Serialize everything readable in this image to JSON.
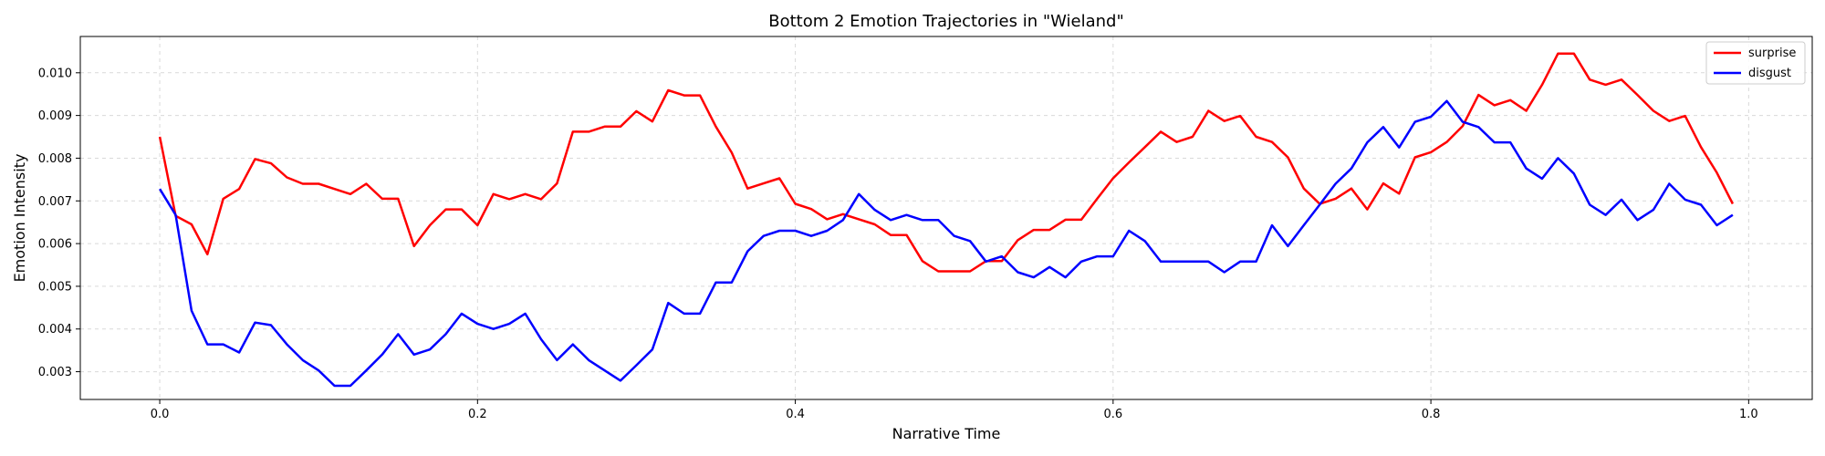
{
  "chart_data": {
    "type": "line",
    "title": "Bottom 2 Emotion Trajectories in \"Wieland\"",
    "xlabel": "Narrative Time",
    "ylabel": "Emotion Intensity",
    "xlim": [
      -0.05,
      1.04
    ],
    "ylim": [
      0.00235,
      0.01085
    ],
    "xticks": [
      0.0,
      0.2,
      0.4,
      0.6,
      0.8,
      1.0
    ],
    "xtick_labels": [
      "0.0",
      "0.2",
      "0.4",
      "0.6",
      "0.8",
      "1.0"
    ],
    "yticks": [
      0.003,
      0.004,
      0.005,
      0.006,
      0.007,
      0.008,
      0.009,
      0.01
    ],
    "ytick_labels": [
      "0.003",
      "0.004",
      "0.005",
      "0.006",
      "0.007",
      "0.008",
      "0.009",
      "0.010"
    ],
    "grid": true,
    "legend_position": "top-right",
    "x": [
      0.0,
      0.01,
      0.02,
      0.03,
      0.04,
      0.05,
      0.06,
      0.07,
      0.08,
      0.09,
      0.1,
      0.11,
      0.12,
      0.13,
      0.14,
      0.15,
      0.16,
      0.17,
      0.18,
      0.19,
      0.2,
      0.21,
      0.22,
      0.23,
      0.24,
      0.25,
      0.26,
      0.27,
      0.28,
      0.29,
      0.3,
      0.31,
      0.32,
      0.33,
      0.34,
      0.35,
      0.36,
      0.37,
      0.38,
      0.39,
      0.4,
      0.41,
      0.42,
      0.43,
      0.44,
      0.45,
      0.46,
      0.47,
      0.48,
      0.49,
      0.5,
      0.51,
      0.52,
      0.53,
      0.54,
      0.55,
      0.56,
      0.57,
      0.58,
      0.59,
      0.6,
      0.61,
      0.62,
      0.63,
      0.64,
      0.65,
      0.66,
      0.67,
      0.68,
      0.69,
      0.7,
      0.71,
      0.72,
      0.73,
      0.74,
      0.75,
      0.76,
      0.77,
      0.78,
      0.79,
      0.8,
      0.81,
      0.82,
      0.83,
      0.84,
      0.85,
      0.86,
      0.87,
      0.88,
      0.89,
      0.9,
      0.91,
      0.92,
      0.93,
      0.94,
      0.95,
      0.96,
      0.97,
      0.98,
      0.99
    ],
    "series": [
      {
        "name": "surprise",
        "color": "#ff0000",
        "values": [
          0.0085,
          0.00665,
          0.00645,
          0.00575,
          0.00705,
          0.00728,
          0.00798,
          0.00788,
          0.00755,
          0.0074,
          0.0074,
          0.00728,
          0.00716,
          0.0074,
          0.00705,
          0.00705,
          0.00594,
          0.00643,
          0.0068,
          0.0068,
          0.00643,
          0.00716,
          0.00704,
          0.00716,
          0.00704,
          0.00741,
          0.00862,
          0.00862,
          0.00874,
          0.00874,
          0.0091,
          0.00886,
          0.00959,
          0.00947,
          0.00947,
          0.00874,
          0.00813,
          0.00729,
          0.00741,
          0.00753,
          0.00693,
          0.00681,
          0.00657,
          0.00669,
          0.00657,
          0.00645,
          0.0062,
          0.0062,
          0.00559,
          0.00535,
          0.00535,
          0.00535,
          0.00559,
          0.00559,
          0.00608,
          0.00632,
          0.00632,
          0.00656,
          0.00656,
          0.00705,
          0.00753,
          0.0079,
          0.00826,
          0.00862,
          0.00838,
          0.0085,
          0.00911,
          0.00887,
          0.00899,
          0.0085,
          0.00838,
          0.00802,
          0.00729,
          0.00693,
          0.00705,
          0.00729,
          0.0068,
          0.00741,
          0.00717,
          0.00802,
          0.00814,
          0.00838,
          0.00875,
          0.00948,
          0.00924,
          0.00936,
          0.00911,
          0.00972,
          0.01045,
          0.01045,
          0.00984,
          0.00972,
          0.00984,
          0.00948,
          0.00911,
          0.00887,
          0.00899,
          0.00826,
          0.00766,
          0.00693
        ]
      },
      {
        "name": "disgust",
        "color": "#0000ff",
        "values": [
          0.00728,
          0.00667,
          0.00443,
          0.00364,
          0.00364,
          0.00345,
          0.00415,
          0.00409,
          0.00364,
          0.00327,
          0.00303,
          0.00267,
          0.00267,
          0.00303,
          0.0034,
          0.00388,
          0.0034,
          0.00352,
          0.00388,
          0.00436,
          0.00412,
          0.004,
          0.00412,
          0.00436,
          0.00376,
          0.00327,
          0.00364,
          0.00327,
          0.00303,
          0.00279,
          0.00315,
          0.00352,
          0.00461,
          0.00436,
          0.00436,
          0.00509,
          0.00509,
          0.00582,
          0.00618,
          0.0063,
          0.0063,
          0.00618,
          0.0063,
          0.00655,
          0.00716,
          0.00679,
          0.00655,
          0.00667,
          0.00655,
          0.00655,
          0.00618,
          0.00606,
          0.00558,
          0.0057,
          0.00533,
          0.00521,
          0.00545,
          0.00521,
          0.00558,
          0.0057,
          0.0057,
          0.0063,
          0.00606,
          0.00558,
          0.00558,
          0.00558,
          0.00558,
          0.00533,
          0.00558,
          0.00558,
          0.00643,
          0.00594,
          0.00643,
          0.00691,
          0.0074,
          0.00776,
          0.00837,
          0.00873,
          0.00825,
          0.00885,
          0.00897,
          0.00934,
          0.00885,
          0.00873,
          0.00837,
          0.00837,
          0.00776,
          0.00752,
          0.008,
          0.00764,
          0.00691,
          0.00667,
          0.00703,
          0.00655,
          0.00679,
          0.0074,
          0.00703,
          0.00691,
          0.00643,
          0.00667
        ]
      }
    ]
  }
}
